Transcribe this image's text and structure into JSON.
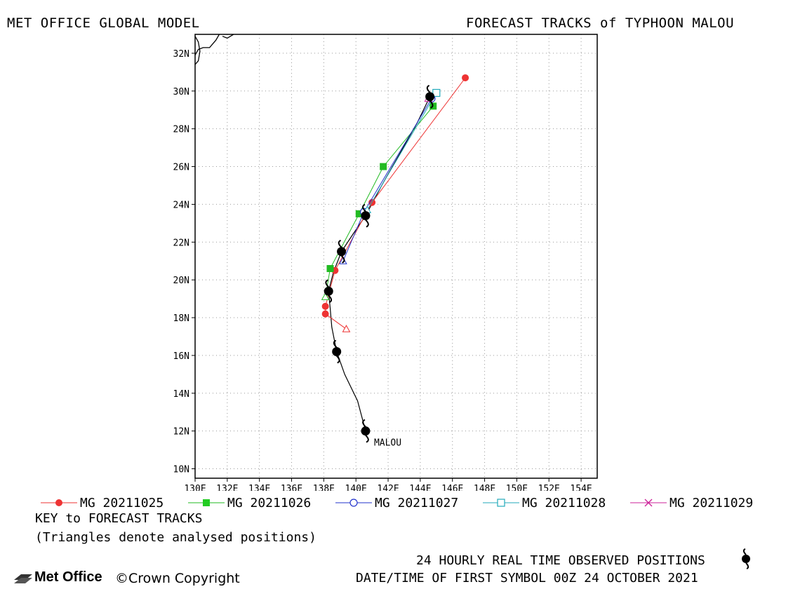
{
  "header": {
    "left": "MET OFFICE GLOBAL MODEL",
    "right": "FORECAST TRACKS of TYPHOON MALOU"
  },
  "map": {
    "lon_range": [
      130,
      155
    ],
    "lat_range": [
      9.5,
      33
    ],
    "lon_ticks": [
      "130E",
      "132E",
      "134E",
      "136E",
      "138E",
      "140E",
      "142E",
      "144E",
      "146E",
      "148E",
      "150E",
      "152E",
      "154E"
    ],
    "lat_ticks": [
      "10N",
      "12N",
      "14N",
      "16N",
      "18N",
      "20N",
      "22N",
      "24N",
      "26N",
      "28N",
      "30N",
      "32N"
    ],
    "storm_label": "MALOU",
    "observed_track": [
      [
        140.6,
        12.0
      ],
      [
        140.1,
        13.6
      ],
      [
        139.3,
        15.0
      ],
      [
        138.8,
        16.2
      ],
      [
        138.5,
        17.5
      ],
      [
        138.4,
        18.5
      ],
      [
        138.3,
        19.4
      ],
      [
        138.6,
        20.4
      ],
      [
        139.1,
        21.5
      ],
      [
        139.8,
        22.4
      ],
      [
        140.6,
        23.4
      ],
      [
        141.6,
        25.0
      ],
      [
        142.8,
        26.8
      ],
      [
        143.8,
        28.3
      ],
      [
        144.6,
        29.7
      ]
    ],
    "observed_positions": [
      [
        140.6,
        12.0
      ],
      [
        138.8,
        16.2
      ],
      [
        138.3,
        19.4
      ],
      [
        139.1,
        21.5
      ],
      [
        140.6,
        23.4
      ],
      [
        144.6,
        29.7
      ]
    ],
    "colors": {
      "obs": "#000000",
      "mg25": "#ee3333",
      "mg26": "#22bb22",
      "mg27": "#2233cc",
      "mg28": "#22aabb",
      "mg29": "#cc2299",
      "coast": "#000000",
      "grid": "#999999"
    }
  },
  "series": [
    {
      "name": "MG 20211025",
      "color": "#ee3333",
      "marker": "circle",
      "points": [
        [
          139.4,
          17.4
        ],
        [
          138.1,
          18.2
        ],
        [
          138.1,
          18.6
        ],
        [
          138.7,
          20.5
        ],
        [
          141.0,
          24.1
        ],
        [
          146.8,
          30.7
        ]
      ],
      "analysed": [
        139.4,
        17.4
      ]
    },
    {
      "name": "MG 20211026",
      "color": "#22bb22",
      "marker": "square",
      "points": [
        [
          138.1,
          19.1
        ],
        [
          138.4,
          20.6
        ],
        [
          140.2,
          23.5
        ],
        [
          141.7,
          26.0
        ],
        [
          144.8,
          29.2
        ]
      ],
      "analysed": [
        138.1,
        19.1
      ]
    },
    {
      "name": "MG 20211027",
      "color": "#2233cc",
      "marker": "circle-open",
      "points": [
        [
          139.2,
          21.0
        ],
        [
          140.5,
          23.6
        ],
        [
          144.7,
          29.6
        ]
      ],
      "analysed": [
        139.2,
        21.0
      ]
    },
    {
      "name": "MG 20211028",
      "color": "#22aabb",
      "marker": "square-open",
      "points": [
        [
          140.7,
          23.7
        ],
        [
          145.0,
          29.9
        ]
      ],
      "analysed": [
        140.7,
        23.7
      ]
    },
    {
      "name": "MG 20211029",
      "color": "#cc2299",
      "marker": "cross",
      "points": [
        [
          144.5,
          29.6
        ]
      ],
      "analysed": [
        144.5,
        29.6
      ]
    }
  ],
  "key": {
    "title": "KEY to FORECAST TRACKS",
    "note": "(Triangles denote analysed positions)"
  },
  "footer": {
    "observed": "24 HOURLY REAL TIME OBSERVED POSITIONS",
    "datetime": "DATE/TIME OF FIRST SYMBOL 00Z 24 OCTOBER 2021",
    "brand": "Met Office",
    "copyright": "©Crown Copyright"
  }
}
